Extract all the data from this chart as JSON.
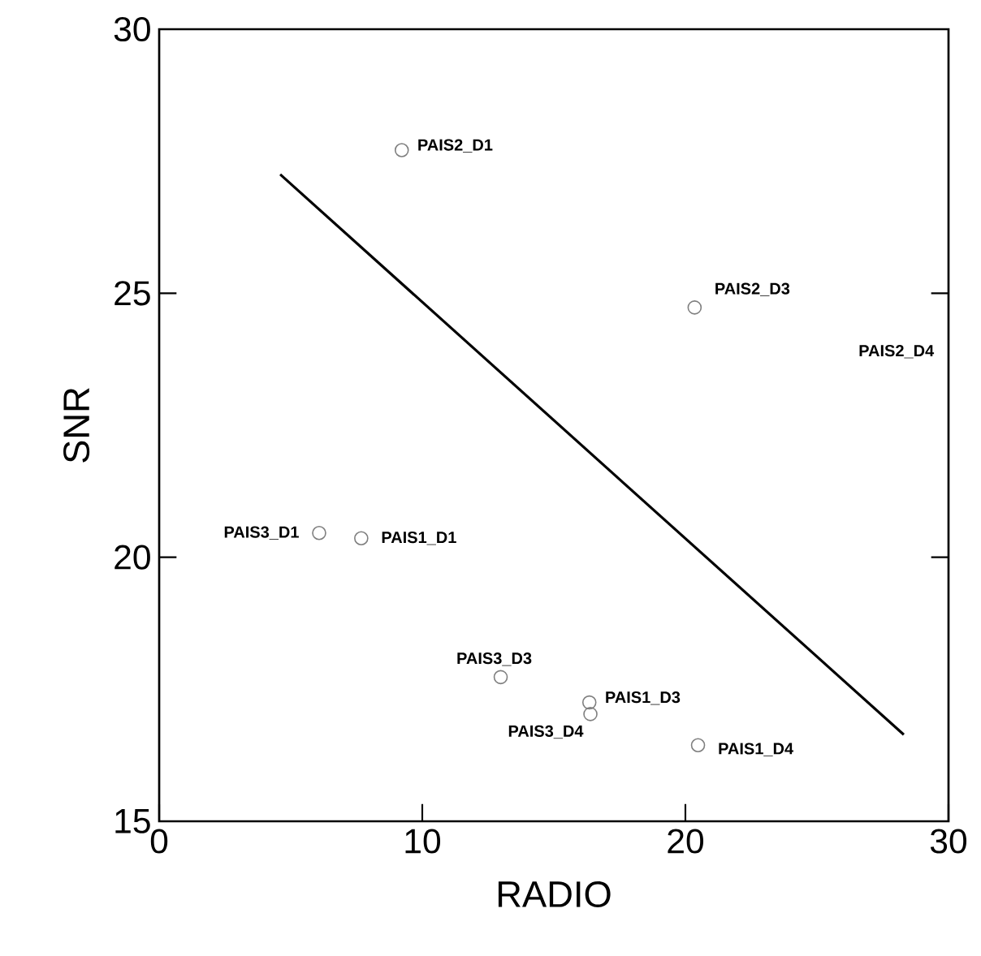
{
  "chart_data": {
    "type": "scatter",
    "xlabel": "RADIO",
    "ylabel": "SNR",
    "xlim": [
      0,
      30
    ],
    "ylim": [
      15,
      30
    ],
    "xticks": [
      0,
      10,
      20,
      30
    ],
    "yticks": [
      15,
      20,
      25,
      30
    ],
    "grid": false,
    "marker": "circle",
    "series": [
      {
        "color": "#7f7f7f",
        "x": [
          9.22,
          20.35,
          6.08,
          7.68,
          12.98,
          16.35,
          16.39,
          20.48
        ],
        "values": [
          27.71,
          24.73,
          20.46,
          20.36,
          17.73,
          17.25,
          17.03,
          16.44
        ]
      },
      {
        "type": "line",
        "color": "#000000",
        "marker": "none",
        "x": [
          4.6,
          28.3
        ],
        "values": [
          27.25,
          16.64
        ]
      }
    ],
    "annotations": [
      {
        "text": "PAIS2_D1",
        "x": 9.22,
        "y": 27.71
      },
      {
        "text": "PAIS2_D3",
        "x": 20.35,
        "y": 24.73
      },
      {
        "text": "PAIS3_D1",
        "x": 6.08,
        "y": 20.46
      },
      {
        "text": "PAIS1_D1",
        "x": 7.68,
        "y": 20.36
      },
      {
        "text": "PAIS3_D3",
        "x": 12.98,
        "y": 17.73
      },
      {
        "text": "PAIS1_D3",
        "x": 16.35,
        "y": 17.25
      },
      {
        "text": "PAIS3_D4",
        "x": 16.39,
        "y": 17.03
      },
      {
        "text": "PAIS1_D4",
        "x": 20.48,
        "y": 16.44
      },
      "PAIS2_D4"
    ]
  }
}
